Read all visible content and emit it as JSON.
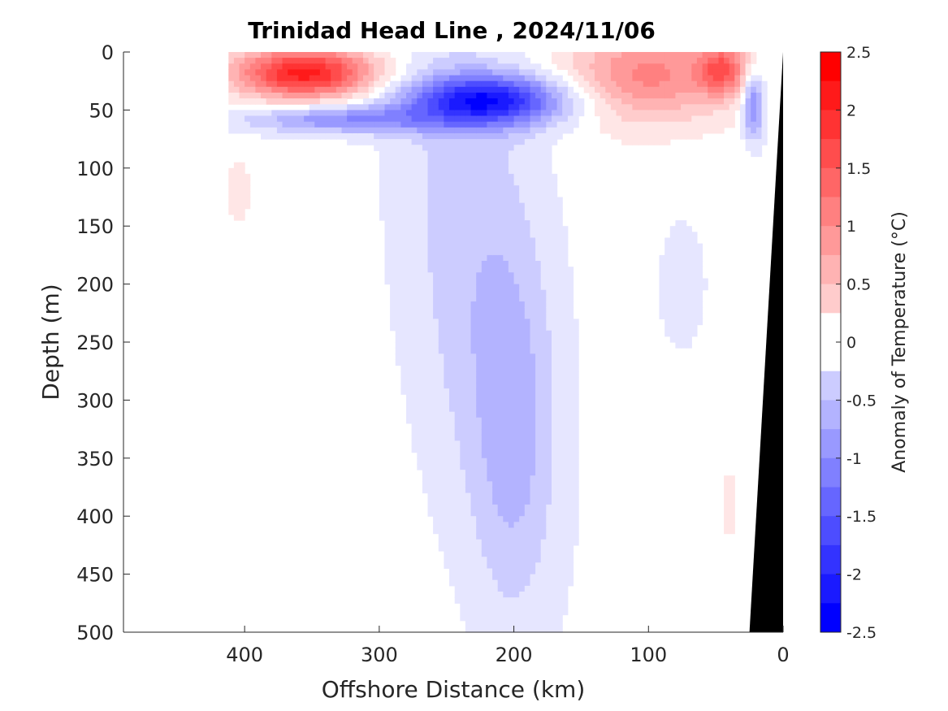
{
  "chart_data": {
    "type": "heatmap",
    "title": "Trinidad Head Line , 2024/11/06",
    "xlabel": "Offshore Distance (km)",
    "ylabel": "Depth (m)",
    "xlim": [
      490,
      0
    ],
    "ylim": [
      500,
      0
    ],
    "x_reversed": true,
    "y_reversed": true,
    "x_ticks": [
      400,
      300,
      200,
      100,
      0
    ],
    "y_ticks": [
      0,
      50,
      100,
      150,
      200,
      250,
      300,
      350,
      400,
      450,
      500
    ],
    "data_extent_x": [
      412,
      0
    ],
    "colorbar": {
      "label": "Anomaly of Temperature (°C)",
      "range": [
        -2.5,
        2.5
      ],
      "step": 0.25,
      "tick_values": [
        2.5,
        2,
        1.5,
        1,
        0.5,
        0,
        -0.5,
        -1,
        -1.5,
        -2,
        -2.5
      ],
      "tick_labels": [
        "2.5",
        "2",
        "1.5",
        "1",
        "0.5",
        "0",
        "-0.5",
        "-1",
        "-1.5",
        "-2",
        "-2.5"
      ],
      "warm_color": "#ff0000",
      "cold_color": "#0000ff",
      "neutral_color": "#ffffff"
    },
    "features": [
      {
        "name": "warm surface lens offshore",
        "x_range": [
          412,
          255
        ],
        "depth_range": [
          0,
          50
        ],
        "anomaly_max": 2.25
      },
      {
        "name": "cold core subsurface",
        "x_range": [
          410,
          140
        ],
        "depth_range": [
          20,
          95
        ],
        "anomaly_min": -2.25
      },
      {
        "name": "cold tongue",
        "x_range": [
          320,
          180
        ],
        "depth_range": [
          60,
          500
        ],
        "anomaly_min": -0.75
      },
      {
        "name": "warm surface nearshore",
        "x_range": [
          170,
          30
        ],
        "depth_range": [
          0,
          110
        ],
        "anomaly_max": 2.0
      },
      {
        "name": "cold patch near coast",
        "x_range": [
          35,
          10
        ],
        "depth_range": [
          0,
          80
        ],
        "anomaly_min": -1.25
      },
      {
        "name": "warm deep blob",
        "x_range": [
          45,
          35
        ],
        "depth_range": [
          360,
          420
        ],
        "anomaly_max": 0.5
      }
    ],
    "bathymetry_color": "#000000"
  }
}
